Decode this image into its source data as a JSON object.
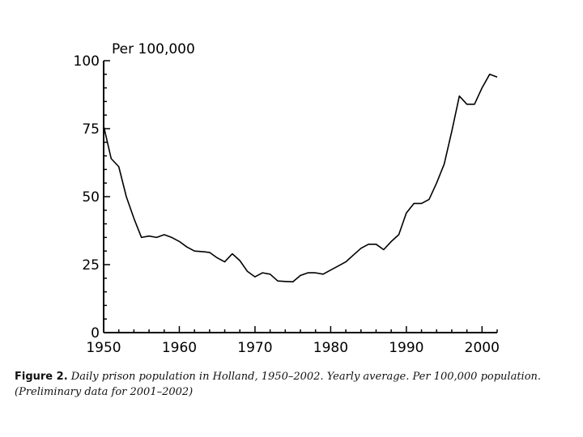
{
  "chart_data": {
    "type": "line",
    "title": "",
    "xlabel": "",
    "ylabel": "Per 100,000",
    "xlim": [
      1950,
      2002
    ],
    "ylim": [
      0,
      100
    ],
    "x_ticks": [
      "1950",
      "1960",
      "1970",
      "1980",
      "1990",
      "2000"
    ],
    "y_ticks": [
      "0",
      "25",
      "50",
      "75",
      "100"
    ],
    "grid": false,
    "series": [
      {
        "color": "#000000",
        "x": [
          1950,
          1951,
          1952,
          1953,
          1954,
          1955,
          1956,
          1957,
          1958,
          1959,
          1960,
          1961,
          1962,
          1963,
          1964,
          1965,
          1966,
          1967,
          1968,
          1969,
          1970,
          1971,
          1972,
          1973,
          1974,
          1975,
          1976,
          1977,
          1978,
          1979,
          1980,
          1981,
          1982,
          1983,
          1984,
          1985,
          1986,
          1987,
          1988,
          1989,
          1990,
          1991,
          1992,
          1993,
          1994,
          1995,
          1996,
          1997,
          1998,
          1999,
          2000,
          2001,
          2002
        ],
        "values": [
          76,
          64,
          61,
          50,
          42,
          35,
          35.5,
          35,
          36,
          35,
          33.5,
          31.5,
          30,
          29.8,
          29.5,
          27.5,
          26,
          29,
          26.5,
          22.5,
          20.5,
          22,
          21.5,
          19,
          18.8,
          18.7,
          21,
          22,
          22,
          21.5,
          23,
          24.5,
          26,
          28.5,
          31,
          32.5,
          32.5,
          30.5,
          33.5,
          36,
          44,
          47.5,
          47.5,
          49,
          55,
          62,
          74,
          87,
          84,
          84,
          90,
          95,
          94
        ]
      }
    ]
  },
  "caption": {
    "figure_label": "Figure 2.",
    "text": "Daily prison population in Holland, 1950–2002. Yearly average. Per 100,000 population. (Preliminary data for 2001–2002)"
  }
}
